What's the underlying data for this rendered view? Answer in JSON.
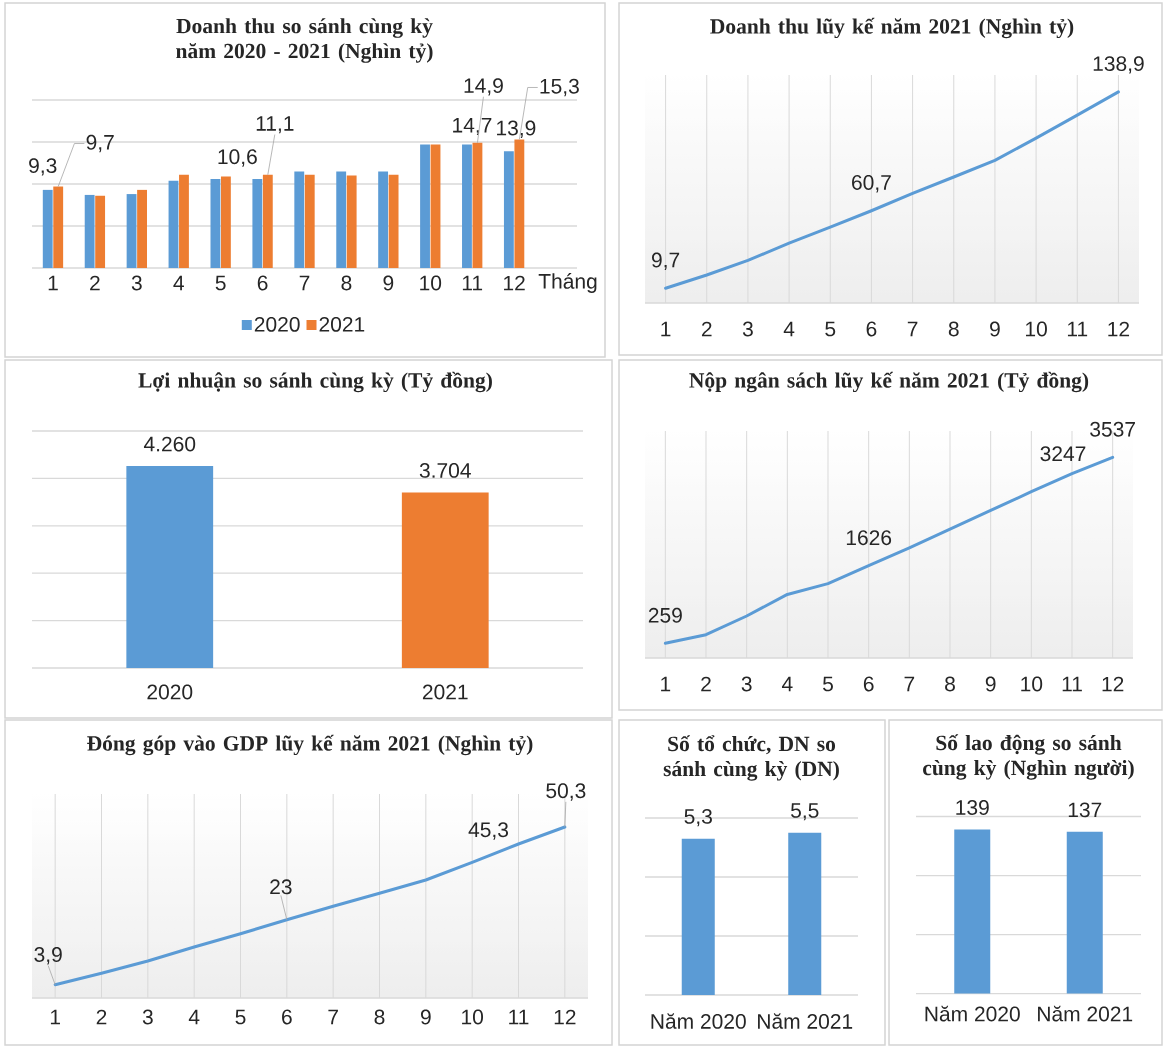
{
  "chart_data": [
    {
      "type": "bar",
      "title": "Doanh thu so sánh cùng kỳ năm 2020 - 2021 (Nghìn tỷ)",
      "xlabel": "Tháng",
      "categories": [
        "1",
        "2",
        "3",
        "4",
        "5",
        "6",
        "7",
        "8",
        "9",
        "10",
        "11",
        "12"
      ],
      "series": [
        {
          "name": "2020",
          "color": "#5b9bd5",
          "values": [
            9.3,
            8.7,
            8.8,
            10.4,
            10.6,
            10.6,
            11.5,
            11.5,
            11.5,
            14.7,
            14.7,
            13.9
          ],
          "value_labels": [
            "9,3",
            null,
            null,
            null,
            null,
            "10,6",
            null,
            null,
            null,
            null,
            "14,7",
            "13,9"
          ]
        },
        {
          "name": "2021",
          "color": "#ed7d31",
          "values": [
            9.7,
            8.6,
            9.3,
            11.1,
            10.9,
            11.1,
            11.1,
            11.0,
            11.1,
            14.7,
            14.9,
            15.3
          ],
          "value_labels": [
            "9,7",
            null,
            null,
            null,
            null,
            "11,1",
            null,
            null,
            null,
            null,
            "14,9",
            "15,3"
          ]
        }
      ],
      "ylim": [
        0,
        20
      ],
      "yticks": [
        {
          "value": 0,
          "label": null
        },
        {
          "value": 5,
          "label": null
        },
        {
          "value": 10,
          "label": null
        },
        {
          "value": 15,
          "label": null
        },
        {
          "value": 20,
          "label": null
        }
      ],
      "grid": "y",
      "legend": "bottom",
      "tick_labels": "x"
    },
    {
      "type": "line",
      "title": "Doanh thu lũy kế năm 2021 (Nghìn tỷ)",
      "categories": [
        "1",
        "2",
        "3",
        "4",
        "5",
        "6",
        "7",
        "8",
        "9",
        "10",
        "11",
        "12"
      ],
      "color": "#5b9bd5",
      "values": [
        9.7,
        18.4,
        28.0,
        39.4,
        49.9,
        60.7,
        72.1,
        82.9,
        93.8,
        108.5,
        123.6,
        138.9
      ],
      "value_labels": [
        "9,7",
        null,
        null,
        null,
        null,
        "60,7",
        null,
        null,
        null,
        null,
        null,
        "138,9"
      ],
      "ylim": [
        0,
        150
      ],
      "grid": "x",
      "tick_labels": "x"
    },
    {
      "type": "bar",
      "title": "Lợi nhuận so sánh cùng kỳ (Tỷ đồng)",
      "categories": [
        "2020",
        "2021"
      ],
      "values": [
        4260,
        3704
      ],
      "colors": [
        "#5b9bd5",
        "#ed7d31"
      ],
      "value_labels": [
        "4.260",
        "3.704"
      ],
      "ylim": [
        0,
        5000
      ],
      "yticks": [
        {
          "value": 0,
          "label": null
        },
        {
          "value": 1000,
          "label": null
        },
        {
          "value": 2000,
          "label": null
        },
        {
          "value": 3000,
          "label": null
        },
        {
          "value": 4000,
          "label": null
        },
        {
          "value": 5000,
          "label": null
        }
      ],
      "grid": "y",
      "tick_labels": "x"
    },
    {
      "type": "line",
      "title": "Nộp ngân sách lũy kế năm 2021 (Tỷ đồng)",
      "categories": [
        "1",
        "2",
        "3",
        "4",
        "5",
        "6",
        "7",
        "8",
        "9",
        "10",
        "11",
        "12"
      ],
      "color": "#5b9bd5",
      "values": [
        259,
        410,
        740,
        1120,
        1310,
        1626,
        1940,
        2270,
        2600,
        2930,
        3247,
        3537
      ],
      "value_labels": [
        "259",
        null,
        null,
        null,
        null,
        "1626",
        null,
        null,
        null,
        null,
        "3247",
        "3537"
      ],
      "ylim": [
        0,
        4000
      ],
      "grid": "x",
      "tick_labels": "x"
    },
    {
      "type": "line",
      "title": "Đóng góp vào GDP lũy kế năm 2021 (Nghìn tỷ)",
      "categories": [
        "1",
        "2",
        "3",
        "4",
        "5",
        "6",
        "7",
        "8",
        "9",
        "10",
        "11",
        "12"
      ],
      "color": "#5b9bd5",
      "values": [
        3.9,
        7.3,
        10.9,
        15.0,
        18.9,
        23,
        27.0,
        30.8,
        34.7,
        39.9,
        45.3,
        50.3
      ],
      "value_labels": [
        "3,9",
        null,
        null,
        null,
        null,
        "23",
        null,
        null,
        null,
        null,
        "45,3",
        "50,3"
      ],
      "ylim": [
        0,
        60
      ],
      "grid": "x",
      "tick_labels": "x"
    },
    {
      "type": "bar",
      "title": "Số tổ chức, DN so sánh cùng kỳ (DN)",
      "categories": [
        "Năm 2020",
        "Năm 2021"
      ],
      "values": [
        5.3,
        5.5
      ],
      "color": "#5b9bd5",
      "value_labels": [
        "5,3",
        "5,5"
      ],
      "ylim": [
        0,
        6
      ],
      "yticks": [
        {
          "value": 0,
          "label": null
        },
        {
          "value": 2,
          "label": null
        },
        {
          "value": 4,
          "label": null
        },
        {
          "value": 6,
          "label": null
        }
      ],
      "grid": "y",
      "tick_labels": "x"
    },
    {
      "type": "bar",
      "title": "Số lao động so sánh cùng kỳ (Nghìn người)",
      "categories": [
        "Năm 2020",
        "Năm 2021"
      ],
      "values": [
        139,
        137
      ],
      "color": "#5b9bd5",
      "value_labels": [
        "139",
        "137"
      ],
      "ylim": [
        0,
        150
      ],
      "yticks": [
        {
          "value": 0,
          "label": null
        },
        {
          "value": 50,
          "label": null
        },
        {
          "value": 100,
          "label": null
        },
        {
          "value": 150,
          "label": null
        }
      ],
      "grid": "y",
      "tick_labels": "x"
    }
  ]
}
